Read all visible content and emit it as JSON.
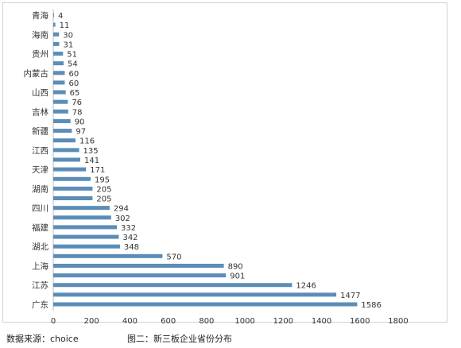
{
  "chart_data": {
    "type": "bar",
    "orientation": "horizontal",
    "title": "",
    "xlabel": "",
    "ylabel": "",
    "xlim": [
      0,
      1800
    ],
    "xticks": [
      0,
      200,
      400,
      600,
      800,
      1000,
      1200,
      1400,
      1600,
      1800
    ],
    "grid": false,
    "legend": "none",
    "bar_color": "#5b8db8",
    "categories": [
      "青海",
      "",
      "海南",
      "",
      "贵州",
      "",
      "内蒙古",
      "",
      "山西",
      "",
      "吉林",
      "",
      "新疆",
      "",
      "江西",
      "",
      "天津",
      "",
      "湖南",
      "",
      "四川",
      "",
      "福建",
      "",
      "湖北",
      "",
      "上海",
      "",
      "江苏",
      "",
      "广东"
    ],
    "values": [
      4,
      11,
      30,
      31,
      51,
      54,
      60,
      60,
      65,
      76,
      78,
      90,
      97,
      116,
      135,
      141,
      171,
      195,
      205,
      205,
      294,
      302,
      332,
      342,
      348,
      570,
      890,
      901,
      1246,
      1477,
      1586
    ]
  },
  "footer": {
    "source": "数据来源：choice",
    "caption": "图二：新三板企业省份分布"
  }
}
